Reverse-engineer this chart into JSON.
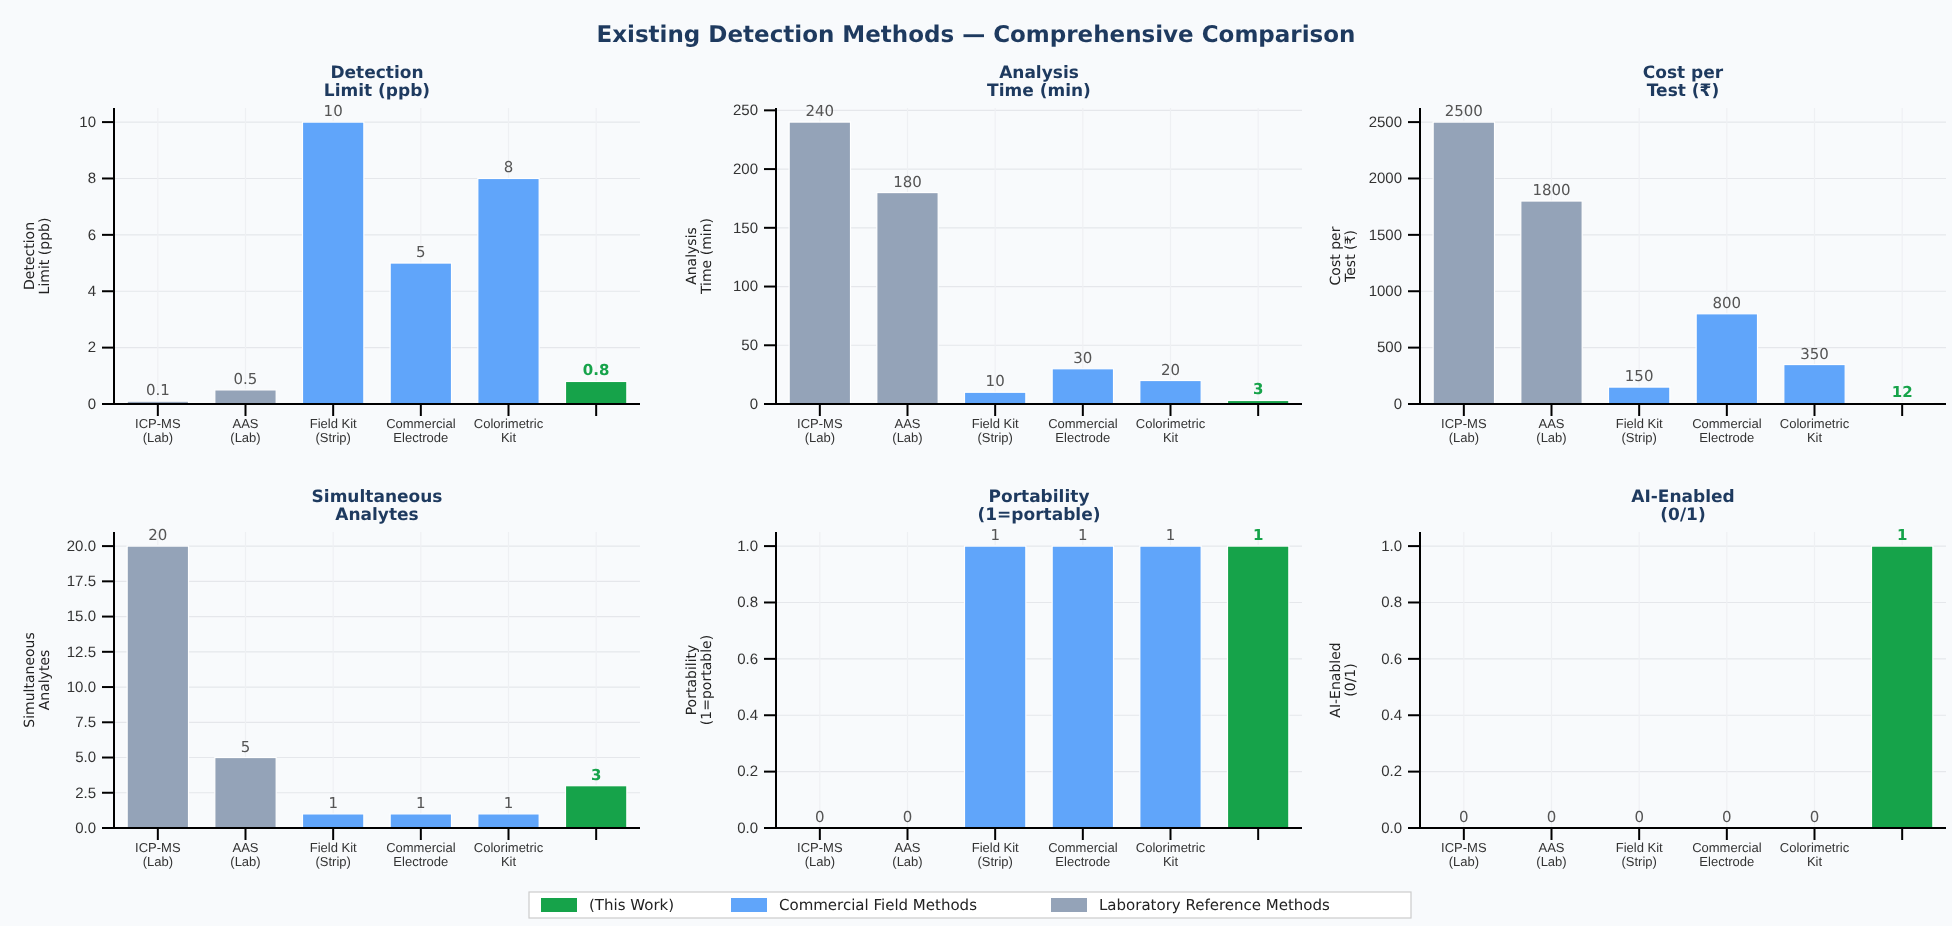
{
  "chart_data": [
    {
      "type": "bar",
      "title": "Detection\nLimit (ppb)",
      "ylabel": "Detection\nLimit (ppb)",
      "annotations": [
        "Existing Detection Methods — Comprehensive Comparison"
      ],
      "categories": [
        "ICP-MS\n(Lab)",
        "AAS\n(Lab)",
        "Field Kit\n(Strip)",
        "Commercial\nElectrode",
        "Colorimetric\nKit",
        null
      ],
      "series": [
        {
          "color": "#16a34a",
          "values": [
            null,
            null,
            null,
            null,
            null,
            0.8
          ]
        },
        {
          "color": "#60a5fa",
          "values": [
            null,
            null,
            10,
            5,
            8,
            null
          ]
        },
        {
          "color": "#94a3b8",
          "values": [
            0.1,
            0.5,
            null,
            null,
            null,
            null
          ]
        }
      ],
      "ylim": [
        0,
        10.5
      ],
      "yticks": [
        0,
        2,
        4,
        6,
        8,
        10
      ],
      "grid": true,
      "data_labels": true
    },
    {
      "type": "bar",
      "title": "Analysis\nTime (min)",
      "ylabel": "Analysis\nTime (min)",
      "categories": [
        "ICP-MS\n(Lab)",
        "AAS\n(Lab)",
        "Field Kit\n(Strip)",
        "Commercial\nElectrode",
        "Colorimetric\nKit",
        null
      ],
      "series": [
        {
          "color": "#16a34a",
          "values": [
            null,
            null,
            null,
            null,
            null,
            3
          ]
        },
        {
          "color": "#60a5fa",
          "values": [
            null,
            null,
            10,
            30,
            20,
            null
          ]
        },
        {
          "color": "#94a3b8",
          "values": [
            240,
            180,
            null,
            null,
            null,
            null
          ]
        }
      ],
      "ylim": [
        0,
        252
      ],
      "yticks": [
        0,
        50,
        100,
        150,
        200,
        250
      ],
      "grid": true,
      "data_labels": true
    },
    {
      "type": "bar",
      "title": "Cost per\nTest (₹)",
      "ylabel": "Cost per\nTest (₹)",
      "categories": [
        "ICP-MS\n(Lab)",
        "AAS\n(Lab)",
        "Field Kit\n(Strip)",
        "Commercial\nElectrode",
        "Colorimetric\nKit",
        null
      ],
      "series": [
        {
          "color": "#16a34a",
          "values": [
            null,
            null,
            null,
            null,
            null,
            12
          ]
        },
        {
          "color": "#60a5fa",
          "values": [
            null,
            null,
            150,
            800,
            350,
            null
          ]
        },
        {
          "color": "#94a3b8",
          "values": [
            2500,
            1800,
            null,
            null,
            null,
            null
          ]
        }
      ],
      "ylim": [
        0,
        2625
      ],
      "yticks": [
        0,
        500,
        1000,
        1500,
        2000,
        2500
      ],
      "grid": true,
      "data_labels": true
    },
    {
      "type": "bar",
      "title": "Simultaneous\nAnalytes",
      "ylabel": "Simultaneous\nAnalytes",
      "categories": [
        "ICP-MS\n(Lab)",
        "AAS\n(Lab)",
        "Field Kit\n(Strip)",
        "Commercial\nElectrode",
        "Colorimetric\nKit",
        null
      ],
      "series": [
        {
          "color": "#16a34a",
          "values": [
            null,
            null,
            null,
            null,
            null,
            3
          ]
        },
        {
          "color": "#60a5fa",
          "values": [
            null,
            null,
            1,
            1,
            1,
            null
          ]
        },
        {
          "color": "#94a3b8",
          "values": [
            20,
            5,
            null,
            null,
            null,
            null
          ]
        }
      ],
      "ylim": [
        0,
        21
      ],
      "yticks": [
        {
          "value": 0,
          "label": "0.0"
        },
        {
          "value": 2.5,
          "label": "2.5"
        },
        {
          "value": 5,
          "label": "5.0"
        },
        {
          "value": 7.5,
          "label": "7.5"
        },
        {
          "value": 10,
          "label": "10.0"
        },
        {
          "value": 12.5,
          "label": "12.5"
        },
        {
          "value": 15,
          "label": "15.0"
        },
        {
          "value": 17.5,
          "label": "17.5"
        },
        {
          "value": 20,
          "label": "20.0"
        }
      ],
      "grid": true,
      "data_labels": true
    },
    {
      "type": "bar",
      "title": "Portability\n(1=portable)",
      "ylabel": "Portability\n(1=portable)",
      "categories": [
        "ICP-MS\n(Lab)",
        "AAS\n(Lab)",
        "Field Kit\n(Strip)",
        "Commercial\nElectrode",
        "Colorimetric\nKit",
        null
      ],
      "series": [
        {
          "color": "#16a34a",
          "values": [
            null,
            null,
            null,
            null,
            null,
            1
          ]
        },
        {
          "color": "#60a5fa",
          "values": [
            null,
            null,
            1,
            1,
            1,
            null
          ]
        },
        {
          "color": "#94a3b8",
          "values": [
            0,
            0,
            null,
            null,
            null,
            null
          ]
        }
      ],
      "ylim": [
        0,
        1.05
      ],
      "yticks": [
        {
          "value": 0,
          "label": "0.0"
        },
        {
          "value": 0.2,
          "label": "0.2"
        },
        {
          "value": 0.4,
          "label": "0.4"
        },
        {
          "value": 0.6,
          "label": "0.6"
        },
        {
          "value": 0.8,
          "label": "0.8"
        },
        {
          "value": 1,
          "label": "1.0"
        }
      ],
      "grid": true,
      "data_labels": true
    },
    {
      "type": "bar",
      "title": "AI-Enabled\n(0/1)",
      "ylabel": "AI-Enabled\n(0/1)",
      "categories": [
        "ICP-MS\n(Lab)",
        "AAS\n(Lab)",
        "Field Kit\n(Strip)",
        "Commercial\nElectrode",
        "Colorimetric\nKit",
        null
      ],
      "series": [
        {
          "name": "(This Work)",
          "color": "#16a34a",
          "values": [
            null,
            null,
            null,
            null,
            null,
            1
          ]
        },
        {
          "name": "Commercial Field Methods",
          "color": "#60a5fa",
          "values": [
            null,
            null,
            0,
            0,
            0,
            null
          ]
        },
        {
          "name": "Laboratory Reference Methods",
          "color": "#94a3b8",
          "values": [
            0,
            0,
            null,
            null,
            null,
            null
          ]
        }
      ],
      "ylim": [
        0,
        1.05
      ],
      "yticks": [
        {
          "value": 0,
          "label": "0.0"
        },
        {
          "value": 0.2,
          "label": "0.2"
        },
        {
          "value": 0.4,
          "label": "0.4"
        },
        {
          "value": 0.6,
          "label": "0.6"
        },
        {
          "value": 0.8,
          "label": "0.8"
        },
        {
          "value": 1,
          "label": "1.0"
        }
      ],
      "grid": true,
      "data_labels": true,
      "legend": "bottom"
    }
  ]
}
